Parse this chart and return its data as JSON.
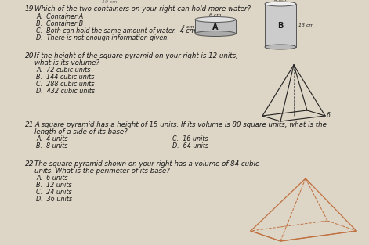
{
  "bg_color": "#c8bfb0",
  "page_bg": "#ddd5c5",
  "text_color": "#1a1a1a",
  "font_size_main": 6.2,
  "font_size_option": 5.8,
  "font_size_qnum": 6.5,
  "q19_num": "19.",
  "q19_title": "Which of the two containers on your right can hold more water?",
  "q19_options": [
    "A.  Container A",
    "B.  Container B",
    "C.  Both can hold the same amount of water.  4 cm",
    "D.  There is not enough information given."
  ],
  "q20_num": "20.",
  "q20_title": "If the height of the square pyramid on your right is 12 units,",
  "q20_sub": "what is its volume?",
  "q20_options": [
    "A.  72 cubic units",
    "B.  144 cubic units",
    "C.  288 cubic units",
    "D.  432 cubic units"
  ],
  "q21_num": "21.",
  "q21_title": "A square pyramid has a height of 15 units. If its volume is 80 square units, what is the",
  "q21_sub": "length of a side of its base?",
  "q21_left": [
    "A.  4 units",
    "B.  8 units"
  ],
  "q21_right": [
    "C.  16 units",
    "D.  64 units"
  ],
  "q22_num": "22.",
  "q22_title": "The square pyramid shown on your right has a volume of 84 cubic",
  "q22_sub": "units. What is the perimeter of its base?",
  "q22_options": [
    "A.  6 units",
    "B.  12 units",
    "C.  24 units",
    "D.  36 units"
  ]
}
